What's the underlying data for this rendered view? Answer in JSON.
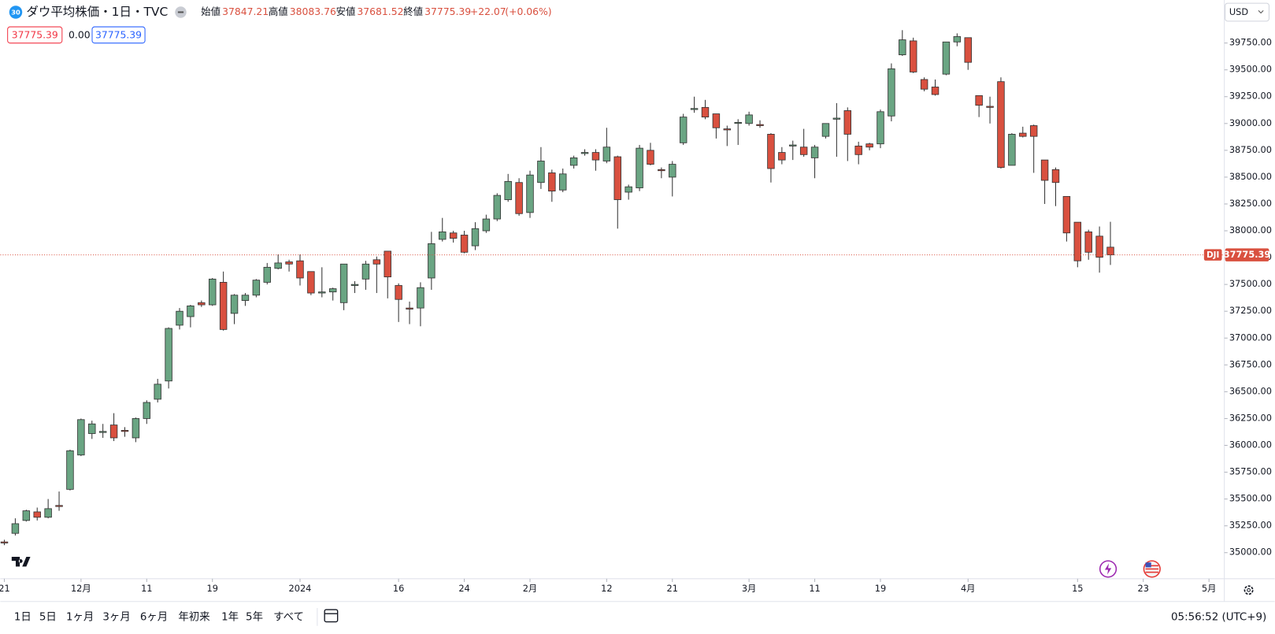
{
  "header": {
    "badge": "30",
    "title": "ダウ平均株価・1日・TVC",
    "labels": {
      "open": "始値",
      "high": "高値",
      "low": "安値",
      "close": "終値"
    },
    "change": "+22.07",
    "change_pct": "(+0.06%)",
    "quote_sell": 37775.39,
    "spread": "0.00",
    "quote_buy": 37775.39
  },
  "currency": "USD",
  "chart_data": {
    "type": "candlestick",
    "up_color": "#6aa583",
    "down_color": "#d9503f",
    "series": [
      {
        "name": "DJI",
        "open": [
          35100,
          35180,
          35300,
          35380,
          35330,
          35440,
          35590,
          35910,
          36110,
          36120,
          36190,
          36140,
          36070,
          36250,
          36430,
          36600,
          37120,
          37200,
          37330,
          37310,
          37520,
          37230,
          37350,
          37400,
          37520,
          37650,
          37710,
          37720,
          37620,
          37420,
          37430,
          37330,
          37490,
          37550,
          37730,
          37810,
          37490,
          37280,
          37280,
          37560,
          37920,
          37980,
          37960,
          37860,
          38000,
          38110,
          38290,
          38450,
          38170,
          38450,
          38540,
          38380,
          38610,
          38720,
          38730,
          38650,
          38690,
          38360,
          38400,
          38750,
          38570,
          38500,
          38820,
          39130,
          39150,
          39090,
          38950,
          39010,
          39000,
          38990,
          38900,
          38730,
          38790,
          38780,
          38680,
          38880,
          39040,
          39120,
          38790,
          38810,
          38810,
          39070,
          39640,
          39770,
          39410,
          39340,
          39460,
          39760,
          39800,
          39260,
          39160,
          39390,
          38610,
          38910,
          38980,
          38660,
          38570,
          38320,
          38080,
          37990,
          37950,
          37847.21
        ],
        "high": [
          35120,
          35320,
          35400,
          35420,
          35500,
          35570,
          35960,
          36250,
          36230,
          36200,
          36300,
          36170,
          36260,
          36420,
          36620,
          37100,
          37280,
          37310,
          37350,
          37560,
          37620,
          37410,
          37420,
          37550,
          37700,
          37780,
          37730,
          37780,
          37620,
          37660,
          37470,
          37690,
          37530,
          37720,
          37760,
          37810,
          37510,
          37340,
          37520,
          37990,
          38120,
          38000,
          38000,
          38080,
          38150,
          38350,
          38530,
          38490,
          38560,
          38780,
          38570,
          38580,
          38700,
          38760,
          38760,
          38960,
          38700,
          38430,
          38800,
          38820,
          38590,
          38650,
          39090,
          39250,
          39220,
          39090,
          38980,
          39040,
          39110,
          39030,
          38910,
          38780,
          38840,
          38950,
          38800,
          39000,
          39190,
          39150,
          38830,
          38820,
          39130,
          39560,
          39870,
          39800,
          39430,
          39410,
          39760,
          39840,
          39800,
          39260,
          39250,
          39430,
          38910,
          38970,
          38990,
          38660,
          38590,
          38320,
          38080,
          38010,
          38040,
          38083.76
        ],
        "low": [
          35070,
          35160,
          35290,
          35300,
          35320,
          35390,
          35580,
          35900,
          36060,
          36070,
          36040,
          36080,
          36030,
          36200,
          36400,
          36530,
          37080,
          37100,
          37290,
          37300,
          37070,
          37130,
          37300,
          37380,
          37500,
          37640,
          37620,
          37490,
          37400,
          37380,
          37350,
          37260,
          37420,
          37450,
          37420,
          37370,
          37150,
          37130,
          37110,
          37450,
          37900,
          37890,
          37790,
          37820,
          37980,
          38090,
          38270,
          38140,
          38120,
          38390,
          38270,
          38360,
          38580,
          38700,
          38560,
          38630,
          38020,
          38290,
          38370,
          38610,
          38490,
          38320,
          38800,
          39100,
          39040,
          38860,
          38790,
          38800,
          38980,
          38960,
          38450,
          38620,
          38660,
          38690,
          38490,
          38860,
          38690,
          38650,
          38620,
          38750,
          38770,
          39020,
          39630,
          39470,
          39300,
          39260,
          39450,
          39720,
          39500,
          39060,
          39000,
          38580,
          38610,
          38870,
          38540,
          38250,
          38230,
          37900,
          37660,
          37730,
          37610,
          37681.52
        ],
        "close": [
          35090,
          35270,
          35390,
          35330,
          35410,
          35430,
          35950,
          36240,
          36200,
          36130,
          36070,
          36130,
          36250,
          36400,
          36570,
          37090,
          37250,
          37300,
          37310,
          37550,
          37080,
          37400,
          37400,
          37540,
          37660,
          37700,
          37690,
          37560,
          37420,
          37430,
          37460,
          37690,
          37500,
          37690,
          37690,
          37570,
          37360,
          37270,
          37470,
          37880,
          37990,
          37930,
          37800,
          38020,
          38110,
          38330,
          38460,
          38160,
          38520,
          38650,
          38370,
          38530,
          38680,
          38730,
          38660,
          38780,
          38290,
          38410,
          38770,
          38620,
          38560,
          38620,
          39060,
          39140,
          39060,
          38960,
          38940,
          39010,
          39080,
          38980,
          38580,
          38660,
          38800,
          38710,
          38780,
          39000,
          39050,
          38900,
          38710,
          38780,
          39110,
          39510,
          39780,
          39480,
          39320,
          39270,
          39760,
          39810,
          39570,
          39170,
          39150,
          38590,
          38900,
          38880,
          38880,
          38470,
          38450,
          37980,
          37720,
          37800,
          37753.32,
          37775.39
        ]
      }
    ],
    "ylim": [
      34757,
      40151
    ],
    "yticks": [
      {
        "value": 35000,
        "label": "35000.00"
      },
      {
        "value": 35250,
        "label": "35250.00"
      },
      {
        "value": 35500,
        "label": "35500.00"
      },
      {
        "value": 35750,
        "label": "35750.00"
      },
      {
        "value": 36000,
        "label": "36000.00"
      },
      {
        "value": 36250,
        "label": "36250.00"
      },
      {
        "value": 36500,
        "label": "36500.00"
      },
      {
        "value": 36750,
        "label": "36750.00"
      },
      {
        "value": 37000,
        "label": "37000.00"
      },
      {
        "value": 37250,
        "label": "37250.00"
      },
      {
        "value": 37500,
        "label": "37500.00"
      },
      {
        "value": 37750,
        "label": "37750.00"
      },
      {
        "value": 38000,
        "label": "38000.00"
      },
      {
        "value": 38250,
        "label": "38250.00"
      },
      {
        "value": 38500,
        "label": "38500.00"
      },
      {
        "value": 38750,
        "label": "38750.00"
      },
      {
        "value": 39000,
        "label": "39000.00"
      },
      {
        "value": 39250,
        "label": "39250.00"
      },
      {
        "value": 39500,
        "label": "39500.00"
      },
      {
        "value": 39750,
        "label": "39750.00"
      }
    ],
    "xlim": [
      -0.37,
      111.4
    ],
    "xticks": [
      {
        "value": 0,
        "label": "21"
      },
      {
        "value": 7,
        "label": "12月"
      },
      {
        "value": 13,
        "label": "11"
      },
      {
        "value": 19,
        "label": "19"
      },
      {
        "value": 27,
        "label": "2024"
      },
      {
        "value": 36,
        "label": "16"
      },
      {
        "value": 42,
        "label": "24"
      },
      {
        "value": 48,
        "label": "2月"
      },
      {
        "value": 55,
        "label": "12"
      },
      {
        "value": 61,
        "label": "21"
      },
      {
        "value": 68,
        "label": "3月"
      },
      {
        "value": 74,
        "label": "11"
      },
      {
        "value": 80,
        "label": "19"
      },
      {
        "value": 88,
        "label": "4月"
      },
      {
        "value": 98,
        "label": "15"
      },
      {
        "value": 104,
        "label": "23"
      },
      {
        "value": 110,
        "label": "5月"
      }
    ]
  },
  "toolbar": {
    "ranges": [
      "1日",
      "5日",
      "1ヶ月",
      "3ヶ月",
      "6ヶ月",
      "年初来",
      "1年",
      "5年",
      "すべて"
    ],
    "clock": "05:56:52 (UTC+9)"
  }
}
